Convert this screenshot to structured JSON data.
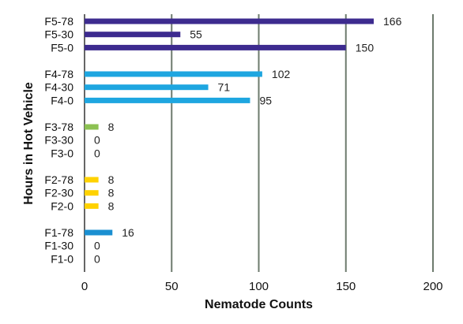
{
  "chart_data": {
    "type": "bar",
    "orientation": "horizontal",
    "title": "",
    "xlabel": "Nematode Counts",
    "ylabel": "Hours in Hot Vehicle",
    "xlim": [
      0,
      200
    ],
    "xticks": [
      0,
      50,
      100,
      150,
      200
    ],
    "grid": "vertical",
    "legend": "none",
    "groups": [
      {
        "name": "F5",
        "color": "#3d2b8f",
        "bars": [
          {
            "label": "F5-78",
            "value": 166
          },
          {
            "label": "F5-30",
            "value": 55
          },
          {
            "label": "F5-0",
            "value": 150
          }
        ]
      },
      {
        "name": "F4",
        "color": "#1ea6e0",
        "bars": [
          {
            "label": "F4-78",
            "value": 102
          },
          {
            "label": "F4-30",
            "value": 71
          },
          {
            "label": "F4-0",
            "value": 95
          }
        ]
      },
      {
        "name": "F3",
        "color": "#8cc152",
        "bars": [
          {
            "label": "F3-78",
            "value": 8
          },
          {
            "label": "F3-30",
            "value": 0
          },
          {
            "label": "F3-0",
            "value": 0
          }
        ]
      },
      {
        "name": "F2",
        "color": "#ffd200",
        "bars": [
          {
            "label": "F2-78",
            "value": 8
          },
          {
            "label": "F2-30",
            "value": 8
          },
          {
            "label": "F2-0",
            "value": 8
          }
        ]
      },
      {
        "name": "F1",
        "color": "#1a8fd1",
        "bars": [
          {
            "label": "F1-78",
            "value": 16
          },
          {
            "label": "F1-30",
            "value": 0
          },
          {
            "label": "F1-0",
            "value": 0
          }
        ]
      }
    ]
  }
}
